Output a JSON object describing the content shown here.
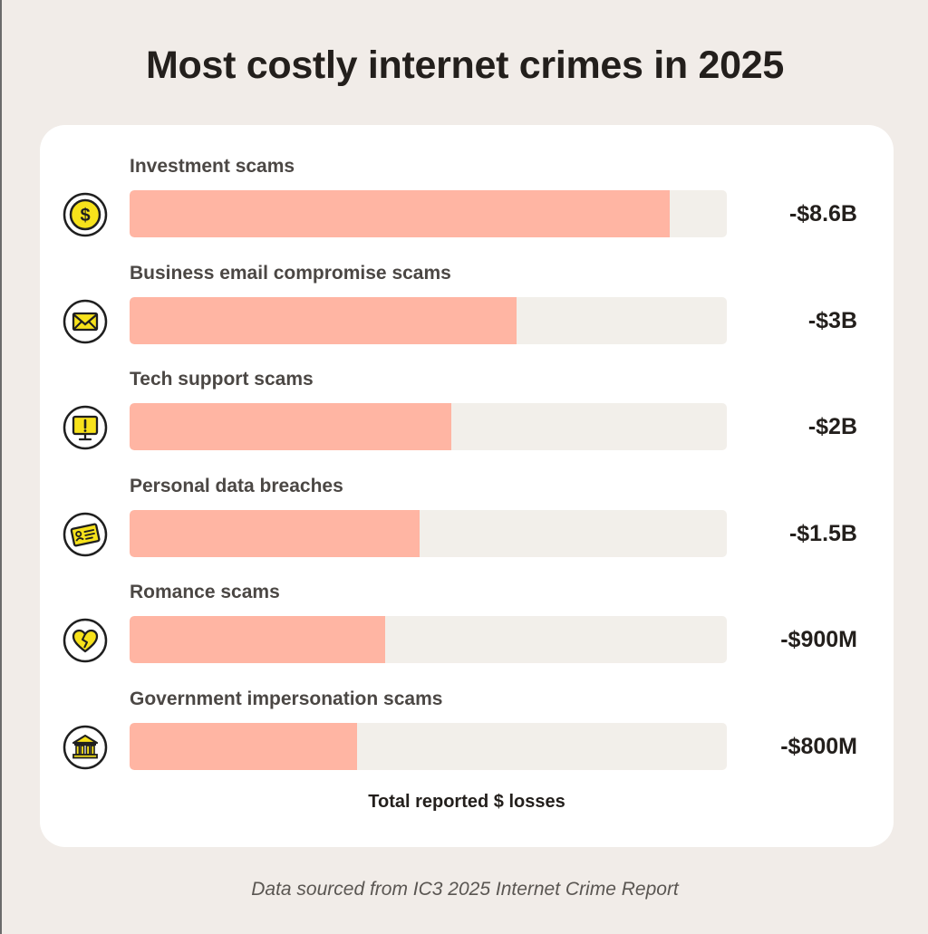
{
  "chart_data": {
    "type": "bar",
    "orientation": "horizontal",
    "title": "Most costly internet crimes in 2025",
    "xlabel": "Total reported $ losses",
    "footnote": "Data sourced from IC3 2025 Internet Crime Report",
    "categories": [
      "Investment scams",
      "Business email compromise scams",
      "Tech support scams",
      "Personal data breaches",
      "Romance scams",
      "Government impersonation scams"
    ],
    "values": [
      -8.6,
      -3.0,
      -2.0,
      -1.5,
      -0.9,
      -0.8
    ],
    "value_unit": "billion USD",
    "value_labels": [
      "-$8.6B",
      "-$3B",
      "-$2B",
      "-$1.5B",
      "-$900M",
      "-$800M"
    ],
    "bar_fill_fractions": [
      0.905,
      0.648,
      0.538,
      0.486,
      0.428,
      0.381
    ],
    "icons": [
      "dollar-coin-icon",
      "envelope-icon",
      "monitor-alert-icon",
      "id-card-icon",
      "broken-heart-icon",
      "bank-icon"
    ],
    "colors": {
      "bar": "#ffb5a3",
      "track": "#f2efea",
      "icon_fill": "#f7e21b",
      "background": "#f1ece8",
      "card": "#ffffff"
    },
    "grid": false,
    "legend": "none"
  }
}
